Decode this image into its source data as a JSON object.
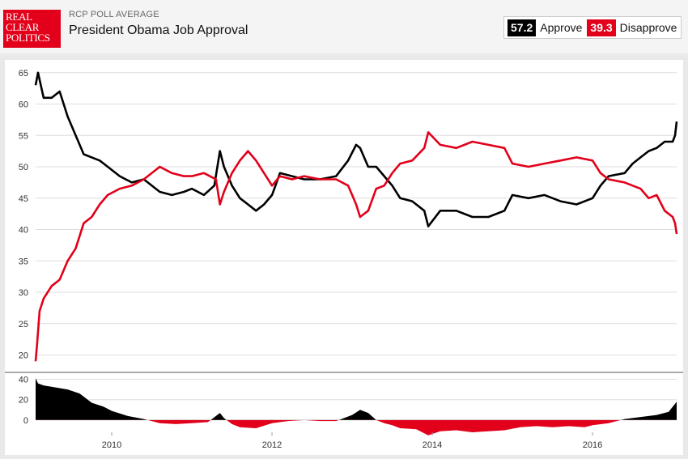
{
  "header": {
    "logo_lines": [
      "REAL",
      "CLEAR",
      "POLITICS"
    ],
    "kicker": "RCP POLL AVERAGE",
    "title": "President Obama Job Approval"
  },
  "legend": {
    "approve_value": "57.2",
    "approve_label": "Approve",
    "disapprove_value": "39.3",
    "disapprove_label": "Disapprove"
  },
  "colors": {
    "approve": "#000000",
    "disapprove": "#e2001a",
    "grid": "#dddddd"
  },
  "chart_data": [
    {
      "type": "line",
      "title": "President Obama Job Approval",
      "xlabel": "",
      "ylabel": "",
      "xlim": [
        2009.05,
        2017.05
      ],
      "ylim": [
        18,
        66
      ],
      "yticks": [
        20,
        25,
        30,
        35,
        40,
        45,
        50,
        55,
        60,
        65
      ],
      "xticks": [
        2010,
        2012,
        2014,
        2016
      ],
      "grid": true,
      "legend": "top-right",
      "series": [
        {
          "name": "Approve",
          "x": [
            2009.05,
            2009.08,
            2009.15,
            2009.25,
            2009.35,
            2009.45,
            2009.55,
            2009.65,
            2009.75,
            2009.85,
            2009.95,
            2010.1,
            2010.25,
            2010.4,
            2010.6,
            2010.75,
            2010.9,
            2011.0,
            2011.15,
            2011.28,
            2011.35,
            2011.4,
            2011.5,
            2011.6,
            2011.7,
            2011.8,
            2011.9,
            2012.0,
            2012.1,
            2012.25,
            2012.4,
            2012.6,
            2012.8,
            2012.95,
            2013.05,
            2013.1,
            2013.2,
            2013.3,
            2013.4,
            2013.5,
            2013.6,
            2013.75,
            2013.9,
            2013.95,
            2014.1,
            2014.3,
            2014.5,
            2014.7,
            2014.9,
            2015.0,
            2015.2,
            2015.4,
            2015.6,
            2015.8,
            2016.0,
            2016.1,
            2016.2,
            2016.4,
            2016.5,
            2016.6,
            2016.7,
            2016.8,
            2016.9,
            2017.0,
            2017.03,
            2017.05
          ],
          "values": [
            63,
            65,
            61,
            61,
            62,
            58,
            55,
            52,
            51.5,
            51,
            50,
            48.5,
            47.5,
            48,
            46,
            45.5,
            46,
            46.5,
            45.5,
            47,
            52.5,
            50,
            47,
            45,
            44,
            43,
            44,
            45.5,
            49,
            48.5,
            48,
            48,
            48.5,
            51,
            53.5,
            53,
            50,
            50,
            48.5,
            47,
            45,
            44.5,
            43,
            40.5,
            43,
            43,
            42,
            42,
            43,
            45.5,
            45,
            45.5,
            44.5,
            44,
            45,
            47,
            48.5,
            49,
            50.5,
            51.5,
            52.5,
            53,
            54,
            54,
            55,
            57.2
          ]
        },
        {
          "name": "Disapprove",
          "x": [
            2009.05,
            2009.07,
            2009.1,
            2009.15,
            2009.25,
            2009.35,
            2009.45,
            2009.55,
            2009.65,
            2009.75,
            2009.85,
            2009.95,
            2010.1,
            2010.25,
            2010.4,
            2010.6,
            2010.75,
            2010.9,
            2011.0,
            2011.15,
            2011.3,
            2011.35,
            2011.4,
            2011.5,
            2011.6,
            2011.7,
            2011.8,
            2011.9,
            2012.0,
            2012.1,
            2012.25,
            2012.4,
            2012.6,
            2012.8,
            2012.95,
            2013.05,
            2013.1,
            2013.2,
            2013.3,
            2013.4,
            2013.5,
            2013.6,
            2013.75,
            2013.9,
            2013.95,
            2014.1,
            2014.3,
            2014.5,
            2014.7,
            2014.9,
            2015.0,
            2015.2,
            2015.4,
            2015.6,
            2015.8,
            2016.0,
            2016.1,
            2016.2,
            2016.4,
            2016.5,
            2016.6,
            2016.7,
            2016.8,
            2016.9,
            2017.0,
            2017.03,
            2017.05
          ],
          "values": [
            19,
            22,
            27,
            29,
            31,
            32,
            35,
            37,
            41,
            42,
            44,
            45.5,
            46.5,
            47,
            48,
            50,
            49,
            48.5,
            48.5,
            49,
            48,
            44,
            46,
            49,
            51,
            52.5,
            51,
            49,
            47,
            48.5,
            48,
            48.5,
            48,
            48,
            47,
            44,
            42,
            43,
            46.5,
            47,
            49,
            50.5,
            51,
            53,
            55.5,
            53.5,
            53,
            54,
            53.5,
            53,
            50.5,
            50,
            50.5,
            51,
            51.5,
            51,
            49,
            48,
            47.5,
            47,
            46.5,
            45,
            45.5,
            43,
            42,
            41,
            39.3
          ]
        }
      ]
    },
    {
      "type": "area",
      "title": "",
      "xlabel": "",
      "ylabel": "",
      "xlim": [
        2009.05,
        2017.05
      ],
      "ylim": [
        -12,
        42
      ],
      "yticks": [
        0,
        20,
        40
      ],
      "grid": true,
      "series": [
        {
          "name": "",
          "x": [
            2009.05,
            2009.08,
            2009.15,
            2009.3,
            2009.45,
            2009.6,
            2009.75,
            2009.9,
            2010.0,
            2010.2,
            2010.4,
            2010.6,
            2010.8,
            2011.0,
            2011.2,
            2011.35,
            2011.4,
            2011.5,
            2011.6,
            2011.8,
            2012.0,
            2012.2,
            2012.4,
            2012.6,
            2012.8,
            2013.0,
            2013.1,
            2013.2,
            2013.3,
            2013.4,
            2013.5,
            2013.6,
            2013.8,
            2013.95,
            2014.1,
            2014.3,
            2014.5,
            2014.7,
            2014.9,
            2015.1,
            2015.3,
            2015.5,
            2015.7,
            2015.9,
            2016.0,
            2016.2,
            2016.4,
            2016.6,
            2016.8,
            2016.95,
            2017.05
          ],
          "values": [
            41,
            36,
            34,
            32,
            30,
            26,
            17,
            13,
            9,
            4,
            1,
            -3,
            -4,
            -3,
            -2,
            7,
            2,
            -4,
            -7,
            -8,
            -3,
            -1,
            0,
            -1,
            -1,
            5,
            10,
            7,
            0,
            -3,
            -5,
            -8,
            -9,
            -15,
            -11,
            -10,
            -12,
            -11,
            -10,
            -7,
            -6,
            -7,
            -6,
            -7,
            -5,
            -3,
            1,
            3,
            5,
            8,
            18
          ]
        }
      ]
    }
  ]
}
